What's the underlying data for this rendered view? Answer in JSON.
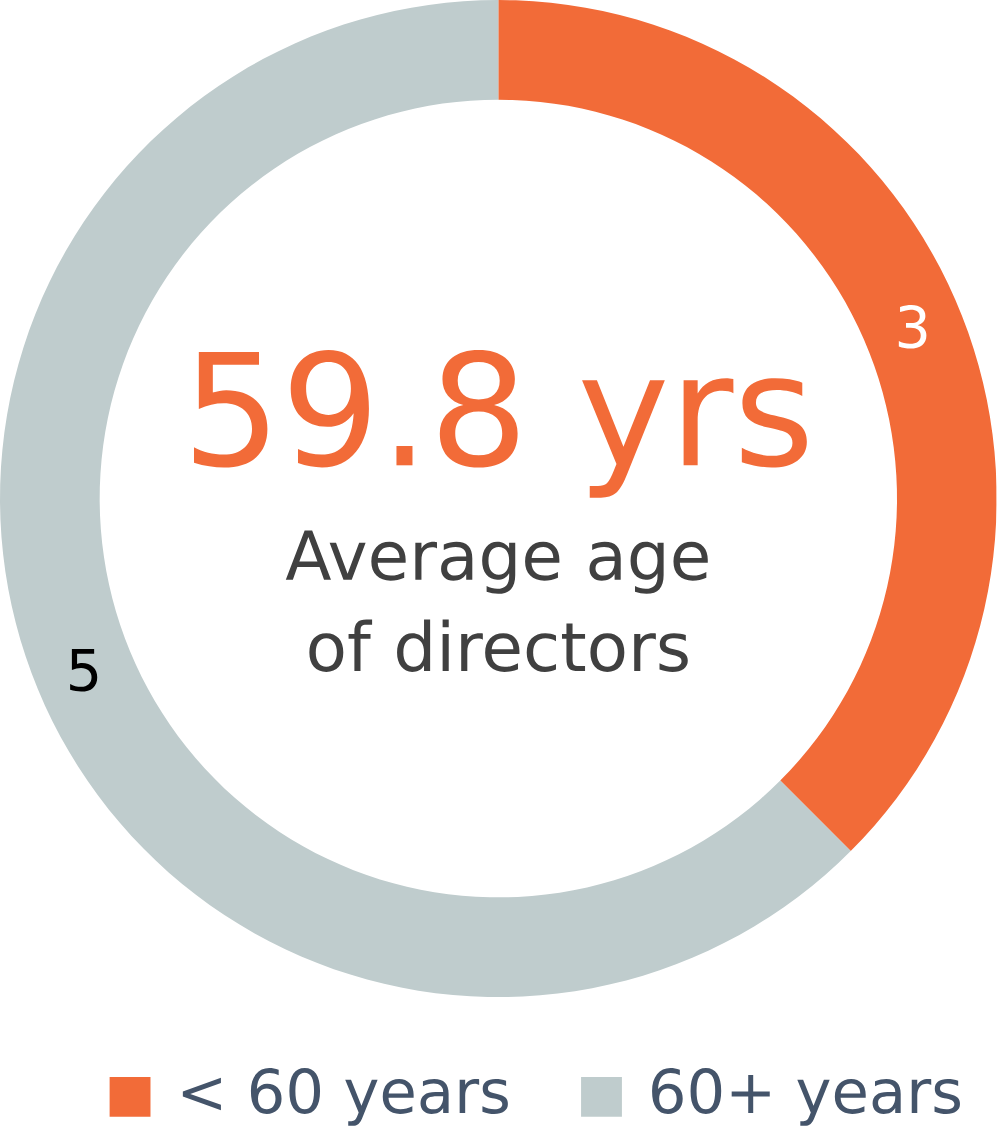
{
  "chart_data": {
    "type": "donut",
    "categories": [
      "< 60 years",
      "60+ years"
    ],
    "values": [
      3,
      5
    ],
    "colors": [
      "#f26b38",
      "#bfcccd"
    ],
    "data_labels": true,
    "legend": "bottom",
    "annotations": [
      "59.8 yrs",
      "Average age of directors"
    ]
  }
}
